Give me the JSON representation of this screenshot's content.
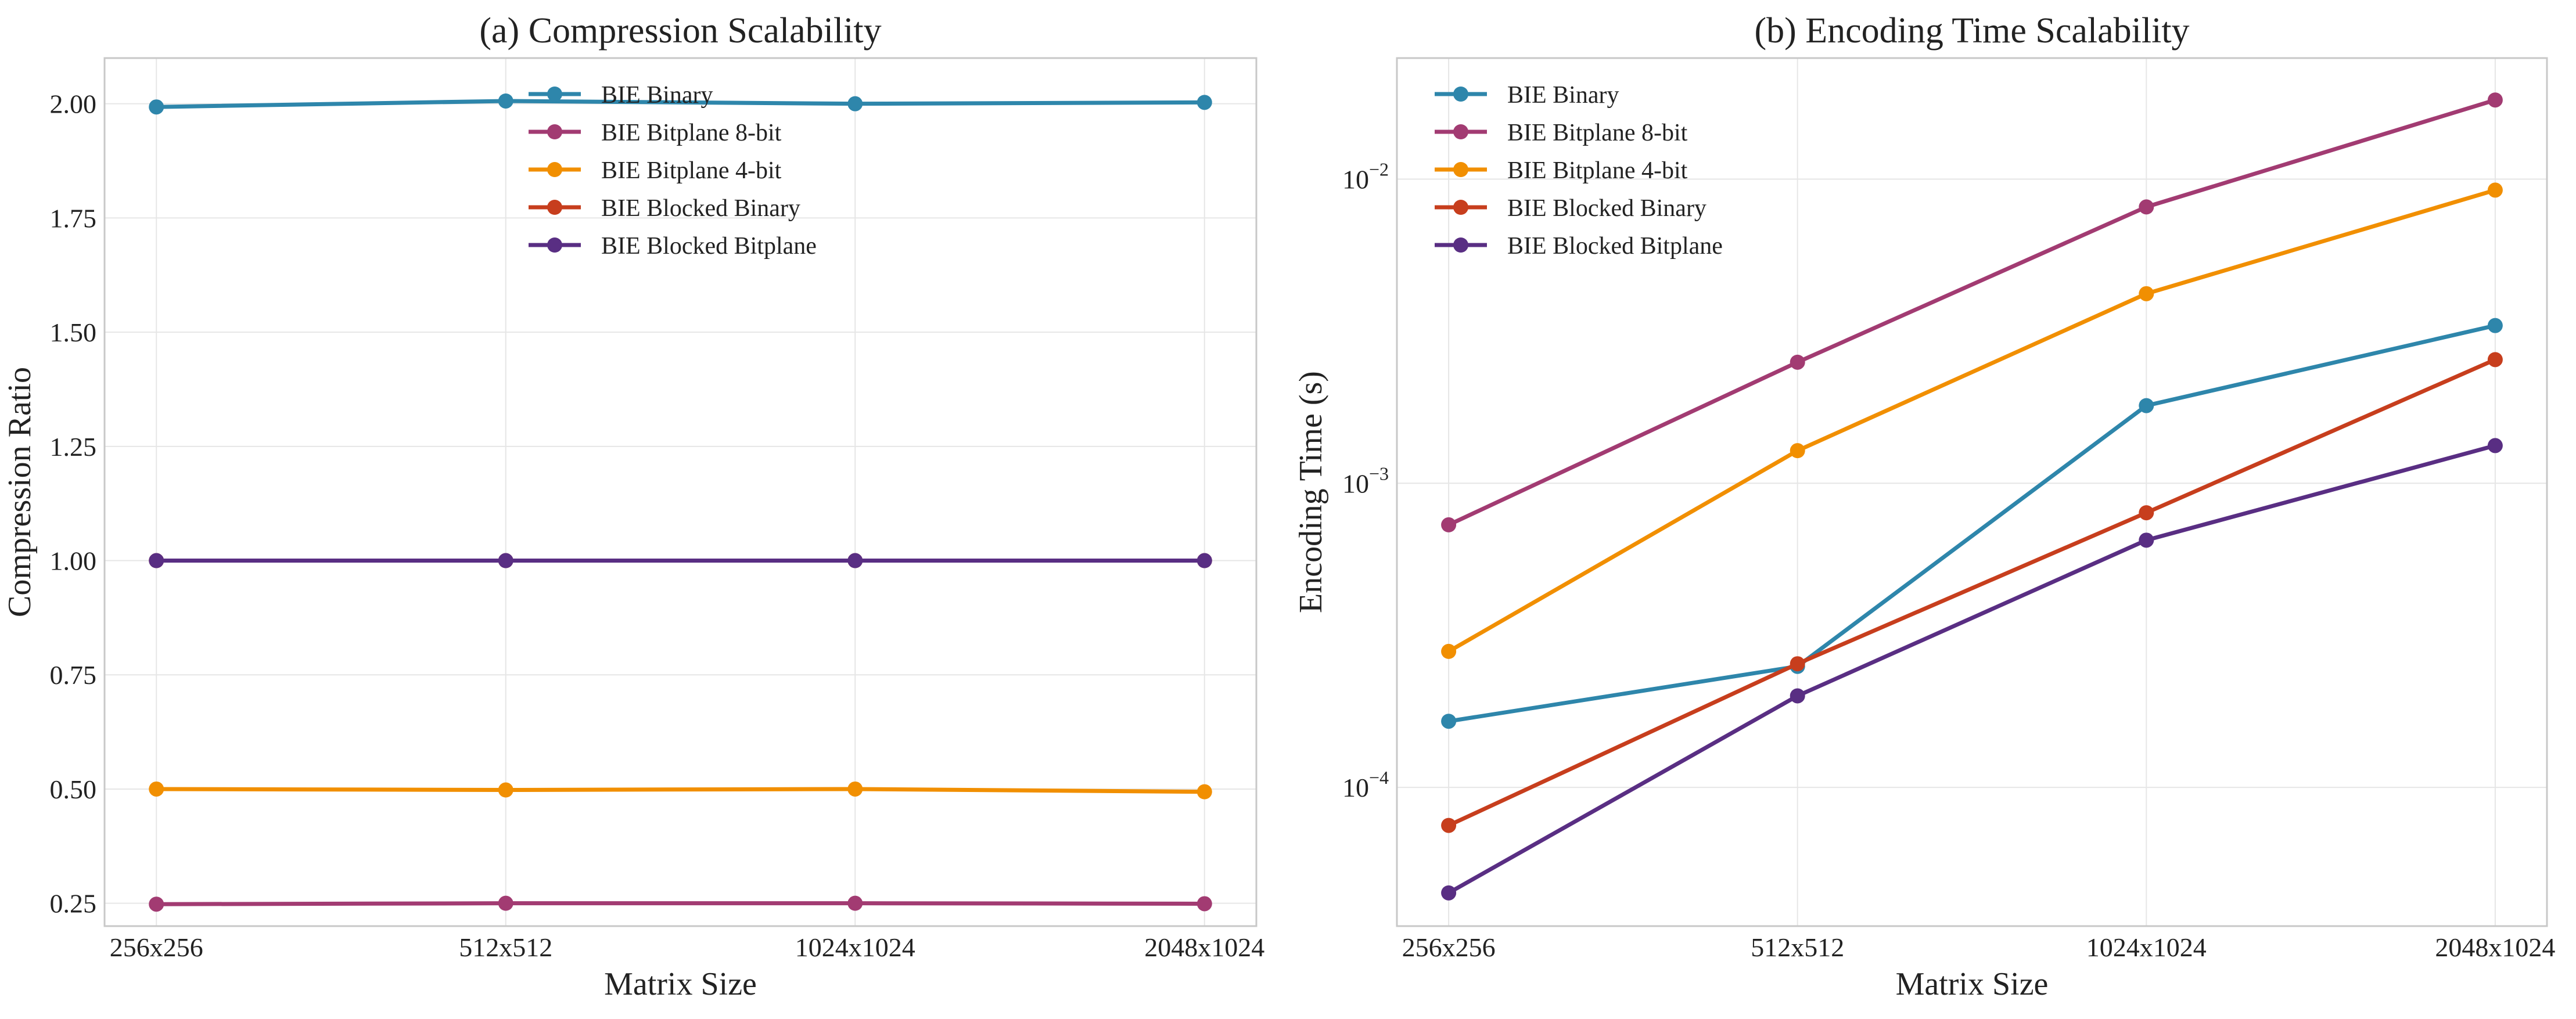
{
  "chart_data": [
    {
      "type": "line",
      "title": "(a) Compression Scalability",
      "xlabel": "Matrix Size",
      "ylabel": "Compression Ratio",
      "categories": [
        "256x256",
        "512x512",
        "1024x1024",
        "2048x1024"
      ],
      "ylim": [
        0.2,
        2.1
      ],
      "yscale": "linear",
      "yticks": [
        0.25,
        0.5,
        0.75,
        1.0,
        1.25,
        1.5,
        1.75,
        2.0
      ],
      "ytick_labels": [
        "0.25",
        "0.50",
        "0.75",
        "1.00",
        "1.25",
        "1.50",
        "1.75",
        "2.00"
      ],
      "grid": true,
      "legend": "upper-center",
      "series": [
        {
          "name": "BIE Binary",
          "color": "#2e86ab",
          "values": [
            1.993,
            2.006,
            2.0,
            2.003
          ]
        },
        {
          "name": "BIE Bitplane 8-bit",
          "color": "#a23b72",
          "values": [
            0.248,
            0.25,
            0.25,
            0.249
          ]
        },
        {
          "name": "BIE Bitplane 4-bit",
          "color": "#f18f01",
          "values": [
            0.5,
            0.498,
            0.5,
            0.494
          ]
        },
        {
          "name": "BIE Blocked Binary",
          "color": "#c73e1d",
          "values": [
            1.0,
            1.0,
            1.0,
            1.0
          ]
        },
        {
          "name": "BIE Blocked Bitplane",
          "color": "#592e83",
          "values": [
            1.0,
            1.0,
            1.0,
            1.0
          ]
        }
      ]
    },
    {
      "type": "line",
      "title": "(b) Encoding Time Scalability",
      "xlabel": "Matrix Size",
      "ylabel": "Encoding Time (s)",
      "categories": [
        "256x256",
        "512x512",
        "1024x1024",
        "2048x1024"
      ],
      "ylim": [
        3.5e-05,
        0.025
      ],
      "yscale": "log",
      "yticks": [
        0.0001,
        0.001,
        0.01
      ],
      "ytick_labels": [
        {
          "base": "10",
          "exp": "−4"
        },
        {
          "base": "10",
          "exp": "−3"
        },
        {
          "base": "10",
          "exp": "−2"
        }
      ],
      "grid": true,
      "legend": "upper-left",
      "series": [
        {
          "name": "BIE Binary",
          "color": "#2e86ab",
          "values": [
            0.000165,
            0.00025,
            0.0018,
            0.0033
          ]
        },
        {
          "name": "BIE Bitplane 8-bit",
          "color": "#a23b72",
          "values": [
            0.00073,
            0.0025,
            0.0081,
            0.0182
          ]
        },
        {
          "name": "BIE Bitplane 4-bit",
          "color": "#f18f01",
          "values": [
            0.00028,
            0.00128,
            0.0042,
            0.0092
          ]
        },
        {
          "name": "BIE Blocked Binary",
          "color": "#c73e1d",
          "values": [
            7.5e-05,
            0.000255,
            0.0008,
            0.00255
          ]
        },
        {
          "name": "BIE Blocked Bitplane",
          "color": "#592e83",
          "values": [
            4.5e-05,
            0.0002,
            0.00065,
            0.00133
          ]
        }
      ]
    }
  ]
}
